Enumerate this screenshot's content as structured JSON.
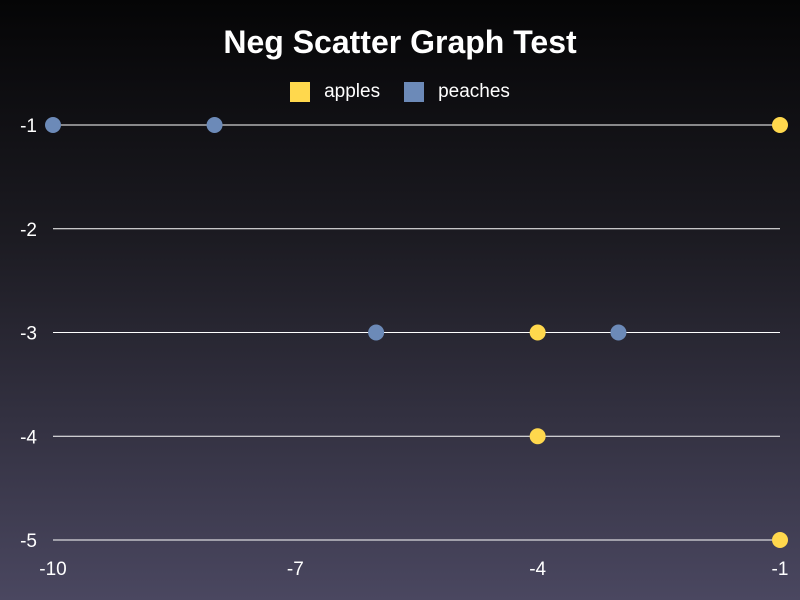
{
  "chart_data": {
    "type": "scatter",
    "title": "Neg Scatter Graph Test",
    "xlabel": "",
    "ylabel": "",
    "xlim": [
      -10,
      -1
    ],
    "ylim": [
      -5,
      -1
    ],
    "x_ticks": [
      -10,
      -7,
      -4,
      -1
    ],
    "y_ticks": [
      -1,
      -2,
      -3,
      -4,
      -5
    ],
    "grid": "horizontal",
    "legend_position": "top-center",
    "series": [
      {
        "name": "apples",
        "color": "#ffd84d",
        "points": [
          {
            "x": -1,
            "y": -1
          },
          {
            "x": -4,
            "y": -3
          },
          {
            "x": -4,
            "y": -4
          },
          {
            "x": -1,
            "y": -5
          }
        ]
      },
      {
        "name": "peaches",
        "color": "#6c8ab8",
        "points": [
          {
            "x": -10,
            "y": -1
          },
          {
            "x": -8,
            "y": -1
          },
          {
            "x": -6,
            "y": -3
          },
          {
            "x": -3,
            "y": -3
          }
        ]
      }
    ]
  }
}
